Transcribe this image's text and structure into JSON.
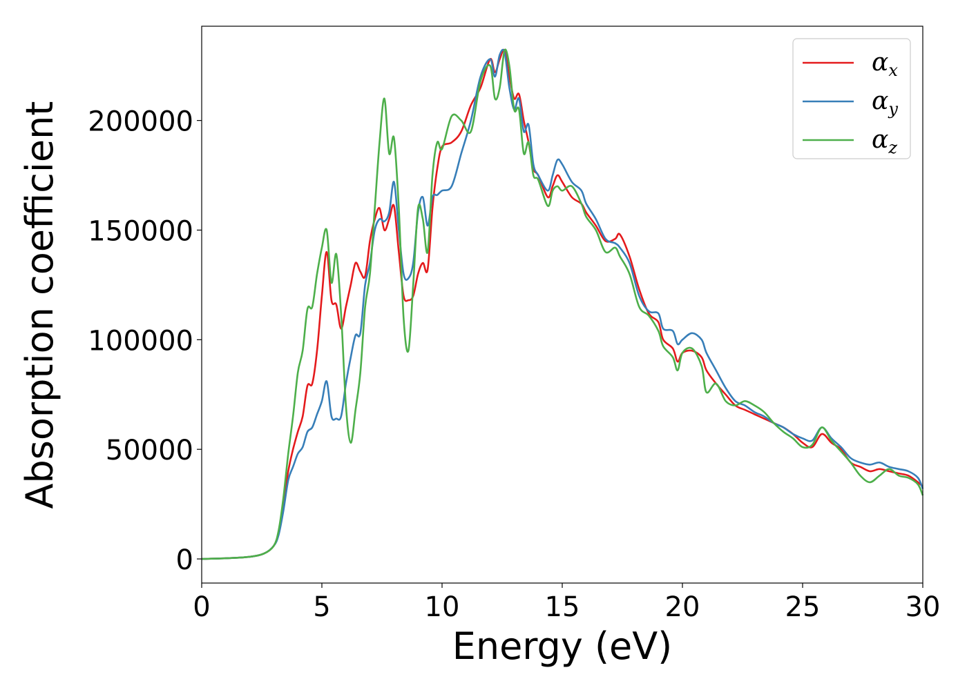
{
  "chart_data": {
    "type": "line",
    "title": "",
    "xlabel": "Energy (eV)",
    "ylabel": "Absorption coefficient",
    "xlim": [
      0,
      30
    ],
    "ylim": [
      -11000,
      243000
    ],
    "xticks": [
      0,
      5,
      10,
      15,
      20,
      25,
      30
    ],
    "yticks": [
      0,
      50000,
      100000,
      150000,
      200000
    ],
    "grid": false,
    "legend_position": "top-right",
    "series": [
      {
        "name": "α",
        "subscript": "x",
        "color": "#e41a1c",
        "points": [
          [
            0,
            0
          ],
          [
            1,
            300
          ],
          [
            2,
            1000
          ],
          [
            2.6,
            2500
          ],
          [
            3,
            6000
          ],
          [
            3.2,
            12000
          ],
          [
            3.4,
            25000
          ],
          [
            3.6,
            40000
          ],
          [
            3.8,
            50000
          ],
          [
            4.0,
            58000
          ],
          [
            4.2,
            65000
          ],
          [
            4.4,
            79000
          ],
          [
            4.6,
            80000
          ],
          [
            4.8,
            95000
          ],
          [
            5.0,
            120000
          ],
          [
            5.2,
            140000
          ],
          [
            5.4,
            118000
          ],
          [
            5.6,
            116000
          ],
          [
            5.8,
            105000
          ],
          [
            6.0,
            115000
          ],
          [
            6.2,
            125000
          ],
          [
            6.4,
            135000
          ],
          [
            6.6,
            131000
          ],
          [
            6.8,
            129000
          ],
          [
            7.0,
            145000
          ],
          [
            7.2,
            155000
          ],
          [
            7.4,
            160000
          ],
          [
            7.6,
            150000
          ],
          [
            7.8,
            155000
          ],
          [
            8.0,
            161000
          ],
          [
            8.2,
            140000
          ],
          [
            8.4,
            120000
          ],
          [
            8.6,
            118000
          ],
          [
            8.8,
            120000
          ],
          [
            9.0,
            130000
          ],
          [
            9.2,
            135000
          ],
          [
            9.4,
            132000
          ],
          [
            9.6,
            160000
          ],
          [
            9.8,
            178000
          ],
          [
            10.0,
            188000
          ],
          [
            10.4,
            190000
          ],
          [
            10.8,
            195000
          ],
          [
            11.2,
            207000
          ],
          [
            11.6,
            215000
          ],
          [
            12.0,
            228000
          ],
          [
            12.2,
            222000
          ],
          [
            12.4,
            228000
          ],
          [
            12.6,
            232000
          ],
          [
            12.8,
            220000
          ],
          [
            13.0,
            210000
          ],
          [
            13.2,
            212000
          ],
          [
            13.4,
            200000
          ],
          [
            13.6,
            190000
          ],
          [
            13.8,
            178000
          ],
          [
            14.0,
            175000
          ],
          [
            14.4,
            165000
          ],
          [
            14.6,
            170000
          ],
          [
            14.8,
            175000
          ],
          [
            15.0,
            172000
          ],
          [
            15.4,
            165000
          ],
          [
            15.8,
            162000
          ],
          [
            16.0,
            158000
          ],
          [
            16.4,
            152000
          ],
          [
            16.8,
            145000
          ],
          [
            17.2,
            146000
          ],
          [
            17.4,
            148000
          ],
          [
            17.8,
            138000
          ],
          [
            18.2,
            123000
          ],
          [
            18.6,
            112000
          ],
          [
            19.0,
            108000
          ],
          [
            19.2,
            100000
          ],
          [
            19.6,
            96000
          ],
          [
            19.8,
            90000
          ],
          [
            20.0,
            94000
          ],
          [
            20.4,
            95000
          ],
          [
            20.8,
            92000
          ],
          [
            21.0,
            86000
          ],
          [
            21.4,
            80000
          ],
          [
            21.8,
            75000
          ],
          [
            22.2,
            70000
          ],
          [
            22.6,
            68000
          ],
          [
            23.0,
            66000
          ],
          [
            23.4,
            64000
          ],
          [
            23.8,
            62000
          ],
          [
            24.2,
            60000
          ],
          [
            24.6,
            57000
          ],
          [
            25.0,
            53000
          ],
          [
            25.4,
            51000
          ],
          [
            25.8,
            57000
          ],
          [
            26.2,
            53000
          ],
          [
            26.6,
            50000
          ],
          [
            27.0,
            44000
          ],
          [
            27.4,
            42000
          ],
          [
            27.8,
            40000
          ],
          [
            28.2,
            41000
          ],
          [
            28.6,
            40000
          ],
          [
            29.0,
            39000
          ],
          [
            29.4,
            38000
          ],
          [
            29.8,
            35000
          ],
          [
            30.0,
            33000
          ]
        ]
      },
      {
        "name": "α",
        "subscript": "y",
        "color": "#377eb8",
        "points": [
          [
            0,
            0
          ],
          [
            1,
            300
          ],
          [
            2,
            1000
          ],
          [
            2.6,
            2500
          ],
          [
            3,
            6000
          ],
          [
            3.2,
            11000
          ],
          [
            3.4,
            22000
          ],
          [
            3.6,
            36000
          ],
          [
            3.8,
            42000
          ],
          [
            4.0,
            48000
          ],
          [
            4.2,
            51000
          ],
          [
            4.4,
            58000
          ],
          [
            4.6,
            60000
          ],
          [
            4.8,
            66000
          ],
          [
            5.0,
            72000
          ],
          [
            5.2,
            81000
          ],
          [
            5.4,
            65000
          ],
          [
            5.6,
            64000
          ],
          [
            5.8,
            65000
          ],
          [
            6.0,
            80000
          ],
          [
            6.2,
            92000
          ],
          [
            6.4,
            102000
          ],
          [
            6.6,
            103000
          ],
          [
            6.8,
            125000
          ],
          [
            7.0,
            135000
          ],
          [
            7.2,
            150000
          ],
          [
            7.4,
            155000
          ],
          [
            7.6,
            154000
          ],
          [
            7.8,
            158000
          ],
          [
            8.0,
            172000
          ],
          [
            8.2,
            150000
          ],
          [
            8.4,
            130000
          ],
          [
            8.6,
            128000
          ],
          [
            8.8,
            135000
          ],
          [
            9.0,
            158000
          ],
          [
            9.2,
            165000
          ],
          [
            9.4,
            152000
          ],
          [
            9.6,
            165000
          ],
          [
            9.8,
            166000
          ],
          [
            10.0,
            168000
          ],
          [
            10.4,
            170000
          ],
          [
            10.8,
            185000
          ],
          [
            11.2,
            200000
          ],
          [
            11.6,
            220000
          ],
          [
            12.0,
            228000
          ],
          [
            12.2,
            220000
          ],
          [
            12.4,
            230000
          ],
          [
            12.6,
            231000
          ],
          [
            12.8,
            215000
          ],
          [
            13.0,
            205000
          ],
          [
            13.2,
            210000
          ],
          [
            13.4,
            195000
          ],
          [
            13.6,
            198000
          ],
          [
            13.8,
            180000
          ],
          [
            14.0,
            175000
          ],
          [
            14.4,
            168000
          ],
          [
            14.6,
            175000
          ],
          [
            14.8,
            182000
          ],
          [
            15.0,
            180000
          ],
          [
            15.4,
            172000
          ],
          [
            15.8,
            168000
          ],
          [
            16.0,
            162000
          ],
          [
            16.4,
            155000
          ],
          [
            16.8,
            146000
          ],
          [
            17.2,
            144000
          ],
          [
            17.4,
            142000
          ],
          [
            17.8,
            135000
          ],
          [
            18.2,
            120000
          ],
          [
            18.6,
            113000
          ],
          [
            19.0,
            112000
          ],
          [
            19.2,
            105000
          ],
          [
            19.6,
            104000
          ],
          [
            19.8,
            98000
          ],
          [
            20.0,
            100000
          ],
          [
            20.4,
            103000
          ],
          [
            20.8,
            100000
          ],
          [
            21.0,
            94000
          ],
          [
            21.4,
            86000
          ],
          [
            21.8,
            78000
          ],
          [
            22.2,
            72000
          ],
          [
            22.6,
            70000
          ],
          [
            23.0,
            67000
          ],
          [
            23.4,
            65000
          ],
          [
            23.8,
            62000
          ],
          [
            24.2,
            60000
          ],
          [
            24.6,
            57000
          ],
          [
            25.0,
            55000
          ],
          [
            25.4,
            54000
          ],
          [
            25.8,
            60000
          ],
          [
            26.2,
            55000
          ],
          [
            26.6,
            51000
          ],
          [
            27.0,
            46000
          ],
          [
            27.4,
            44000
          ],
          [
            27.8,
            43000
          ],
          [
            28.2,
            44000
          ],
          [
            28.6,
            42000
          ],
          [
            29.0,
            41000
          ],
          [
            29.4,
            40000
          ],
          [
            29.8,
            37000
          ],
          [
            30.0,
            32000
          ]
        ]
      },
      {
        "name": "α",
        "subscript": "z",
        "color": "#4daf4a",
        "points": [
          [
            0,
            0
          ],
          [
            1,
            300
          ],
          [
            2,
            1000
          ],
          [
            2.6,
            2500
          ],
          [
            3,
            6000
          ],
          [
            3.2,
            13000
          ],
          [
            3.4,
            28000
          ],
          [
            3.6,
            48000
          ],
          [
            3.8,
            65000
          ],
          [
            4.0,
            85000
          ],
          [
            4.2,
            95000
          ],
          [
            4.4,
            114000
          ],
          [
            4.6,
            115000
          ],
          [
            4.8,
            130000
          ],
          [
            5.0,
            142000
          ],
          [
            5.2,
            150000
          ],
          [
            5.4,
            126000
          ],
          [
            5.6,
            139000
          ],
          [
            5.8,
            112000
          ],
          [
            6.0,
            70000
          ],
          [
            6.2,
            53000
          ],
          [
            6.4,
            68000
          ],
          [
            6.6,
            85000
          ],
          [
            6.8,
            115000
          ],
          [
            7.0,
            130000
          ],
          [
            7.2,
            160000
          ],
          [
            7.4,
            190000
          ],
          [
            7.6,
            210000
          ],
          [
            7.8,
            185000
          ],
          [
            8.0,
            192000
          ],
          [
            8.2,
            160000
          ],
          [
            8.4,
            110000
          ],
          [
            8.6,
            95000
          ],
          [
            8.8,
            125000
          ],
          [
            9.0,
            160000
          ],
          [
            9.2,
            155000
          ],
          [
            9.4,
            140000
          ],
          [
            9.6,
            175000
          ],
          [
            9.8,
            190000
          ],
          [
            10.0,
            187000
          ],
          [
            10.4,
            202000
          ],
          [
            10.8,
            200000
          ],
          [
            11.2,
            195000
          ],
          [
            11.6,
            218000
          ],
          [
            12.0,
            225000
          ],
          [
            12.2,
            210000
          ],
          [
            12.4,
            215000
          ],
          [
            12.6,
            232000
          ],
          [
            12.8,
            225000
          ],
          [
            13.0,
            205000
          ],
          [
            13.2,
            205000
          ],
          [
            13.4,
            185000
          ],
          [
            13.6,
            190000
          ],
          [
            13.8,
            175000
          ],
          [
            14.0,
            173000
          ],
          [
            14.4,
            161000
          ],
          [
            14.6,
            168000
          ],
          [
            14.8,
            170000
          ],
          [
            15.0,
            168000
          ],
          [
            15.4,
            170000
          ],
          [
            15.8,
            162000
          ],
          [
            16.0,
            156000
          ],
          [
            16.4,
            150000
          ],
          [
            16.8,
            140000
          ],
          [
            17.2,
            142000
          ],
          [
            17.4,
            138000
          ],
          [
            17.8,
            130000
          ],
          [
            18.2,
            115000
          ],
          [
            18.6,
            111000
          ],
          [
            19.0,
            104000
          ],
          [
            19.2,
            97000
          ],
          [
            19.6,
            92000
          ],
          [
            19.8,
            86000
          ],
          [
            20.0,
            94000
          ],
          [
            20.4,
            96000
          ],
          [
            20.8,
            88000
          ],
          [
            21.0,
            76000
          ],
          [
            21.4,
            80000
          ],
          [
            21.8,
            72000
          ],
          [
            22.2,
            70000
          ],
          [
            22.6,
            72000
          ],
          [
            23.0,
            70000
          ],
          [
            23.4,
            67000
          ],
          [
            23.8,
            62000
          ],
          [
            24.2,
            58000
          ],
          [
            24.6,
            55000
          ],
          [
            25.0,
            51000
          ],
          [
            25.4,
            52000
          ],
          [
            25.8,
            60000
          ],
          [
            26.2,
            54000
          ],
          [
            26.6,
            49000
          ],
          [
            27.0,
            44000
          ],
          [
            27.4,
            38000
          ],
          [
            27.8,
            35000
          ],
          [
            28.2,
            38000
          ],
          [
            28.6,
            41000
          ],
          [
            29.0,
            38000
          ],
          [
            29.4,
            37000
          ],
          [
            29.8,
            34000
          ],
          [
            30.0,
            29000
          ]
        ]
      }
    ]
  }
}
